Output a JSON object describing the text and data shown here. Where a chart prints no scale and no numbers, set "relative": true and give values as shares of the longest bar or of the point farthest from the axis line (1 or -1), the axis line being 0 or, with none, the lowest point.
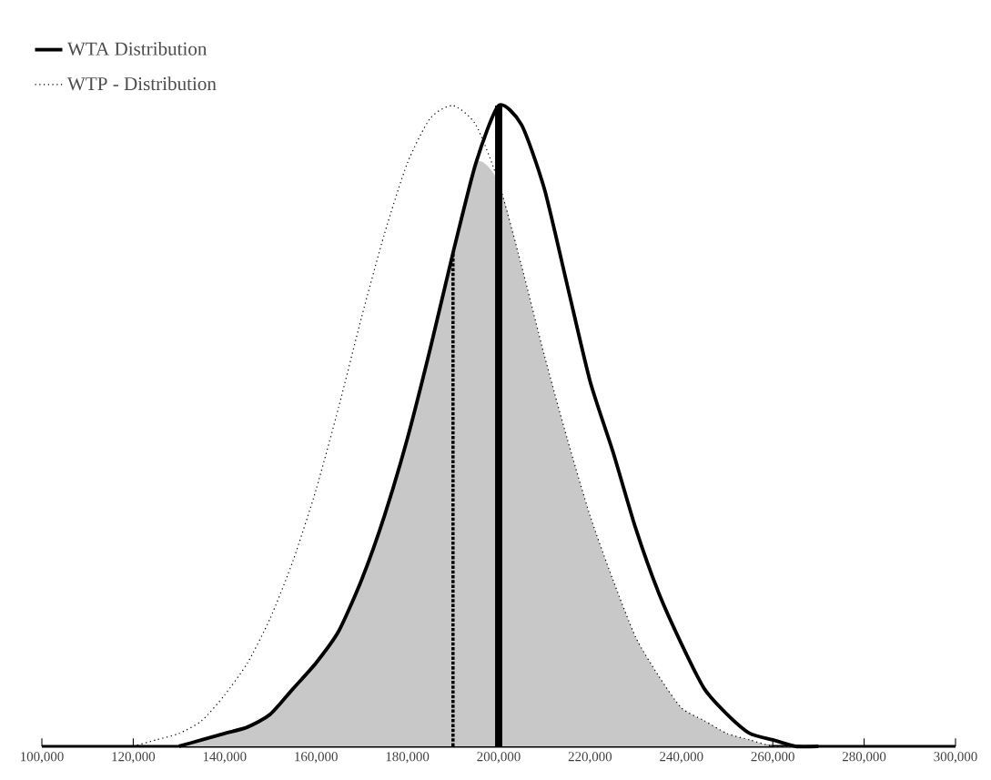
{
  "chart_data": {
    "type": "line",
    "relative": true,
    "xlim": [
      100000,
      300000
    ],
    "xticks": [
      {
        "value": 100000,
        "label": "100,000"
      },
      {
        "value": 120000,
        "label": "120,000"
      },
      {
        "value": 140000,
        "label": "140,000"
      },
      {
        "value": 160000,
        "label": "160,000"
      },
      {
        "value": 180000,
        "label": "180,000"
      },
      {
        "value": 200000,
        "label": "200,000"
      },
      {
        "value": 220000,
        "label": "220,000"
      },
      {
        "value": 240000,
        "label": "240,000"
      },
      {
        "value": 260000,
        "label": "260,000"
      },
      {
        "value": 280000,
        "label": "280,000"
      },
      {
        "value": 300000,
        "label": "300,000"
      }
    ],
    "legend": "top left",
    "series": [
      {
        "name": "WTA Distribution",
        "color": "#000000",
        "line_style": "solid",
        "x": [
          130000,
          135000,
          140000,
          145000,
          150000,
          155000,
          160000,
          165000,
          170000,
          175000,
          180000,
          185000,
          190000,
          195000,
          200000,
          205000,
          210000,
          215000,
          220000,
          225000,
          230000,
          235000,
          240000,
          245000,
          250000,
          255000,
          260000,
          265000,
          270000
        ],
        "values": [
          0.0,
          0.01,
          0.02,
          0.03,
          0.05,
          0.09,
          0.13,
          0.18,
          0.26,
          0.36,
          0.48,
          0.62,
          0.77,
          0.91,
          1.0,
          0.97,
          0.87,
          0.72,
          0.57,
          0.46,
          0.34,
          0.24,
          0.16,
          0.09,
          0.05,
          0.02,
          0.01,
          0.0,
          0.0
        ]
      },
      {
        "name": "WTP - Distribution",
        "color": "#000000",
        "line_style": "dotted",
        "x": [
          120000,
          125000,
          130000,
          135000,
          140000,
          145000,
          150000,
          155000,
          160000,
          165000,
          170000,
          175000,
          180000,
          185000,
          190000,
          195000,
          200000,
          205000,
          210000,
          215000,
          220000,
          225000,
          230000,
          235000,
          240000,
          245000,
          250000,
          255000,
          260000,
          265000
        ],
        "values": [
          0.0,
          0.01,
          0.02,
          0.04,
          0.08,
          0.13,
          0.2,
          0.29,
          0.4,
          0.53,
          0.67,
          0.8,
          0.91,
          0.98,
          1.0,
          0.97,
          0.88,
          0.75,
          0.61,
          0.48,
          0.36,
          0.26,
          0.17,
          0.11,
          0.06,
          0.04,
          0.02,
          0.01,
          0.0,
          0.0
        ]
      },
      {
        "type": "area",
        "color": "#c8c8c8",
        "x": [
          130000,
          135000,
          140000,
          145000,
          150000,
          155000,
          160000,
          165000,
          170000,
          175000,
          180000,
          185000,
          190000,
          195000,
          200000,
          205000,
          210000,
          215000,
          220000,
          225000,
          230000,
          235000,
          240000,
          245000,
          250000,
          255000,
          260000,
          265000
        ],
        "values": [
          0.0,
          0.01,
          0.02,
          0.03,
          0.05,
          0.09,
          0.13,
          0.18,
          0.26,
          0.36,
          0.48,
          0.62,
          0.77,
          0.91,
          0.88,
          0.75,
          0.61,
          0.48,
          0.36,
          0.26,
          0.17,
          0.11,
          0.06,
          0.04,
          0.02,
          0.01,
          0.0,
          0.0
        ]
      }
    ],
    "ref_lines": [
      {
        "axis": "x",
        "value": 190000,
        "line_style": "dotted",
        "color": "#000000"
      },
      {
        "axis": "x",
        "value": 200000,
        "line_style": "solid",
        "color": "#000000"
      }
    ]
  }
}
